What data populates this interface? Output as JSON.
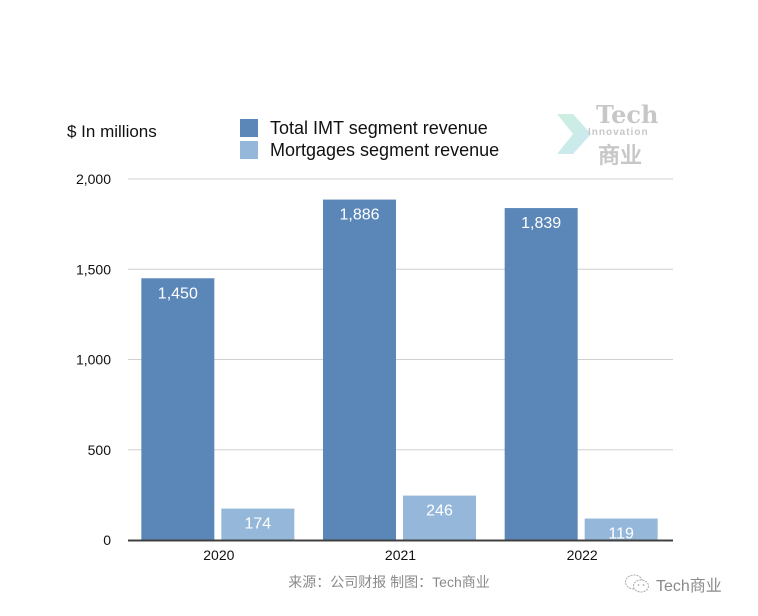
{
  "chart_data": {
    "type": "bar",
    "title": "",
    "ylabel": "$ In millions",
    "xlabel": "",
    "categories": [
      "2020",
      "2021",
      "2022"
    ],
    "series": [
      {
        "name": "Total IMT segment revenue",
        "color": "#5b86b8",
        "values": [
          1450,
          1886,
          1839
        ],
        "labels": [
          "1,450",
          "1,886",
          "1,839"
        ]
      },
      {
        "name": "Mortgages segment revenue",
        "color": "#95b8da",
        "values": [
          174,
          246,
          119
        ],
        "labels": [
          "174",
          "246",
          "119"
        ]
      }
    ],
    "ylim": [
      0,
      2000
    ],
    "yticks": [
      0,
      500,
      1000,
      1500,
      2000
    ],
    "ytick_labels": [
      "0",
      "500",
      "1,000",
      "1,500",
      "2,000"
    ],
    "grid": true,
    "legend": "top-center",
    "data_labels": "inside-top"
  },
  "logo": {
    "tech": "Tech",
    "innovation": "Innovation",
    "cn": "商业"
  },
  "source_note": "来源：公司财报 制图：Tech商业",
  "watermark": {
    "icon": "wechat-icon",
    "text": "Tech商业"
  },
  "colors": {
    "gridline": "#d0d0d0",
    "axis": "#404040",
    "label_text": "#ffffff"
  }
}
